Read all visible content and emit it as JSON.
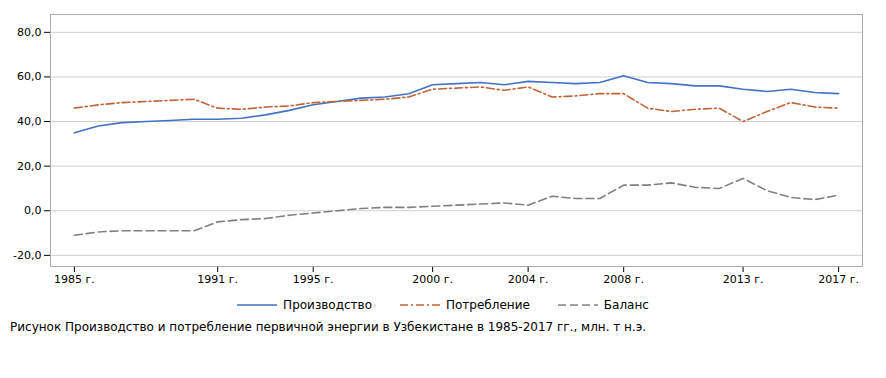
{
  "chart_data": {
    "type": "line",
    "caption": "Рисунок Производство и потребление первичной энергии в Узбекистане в 1985-2017 гг., млн. т н.э.",
    "x": [
      1985,
      1986,
      1987,
      1988,
      1989,
      1990,
      1991,
      1992,
      1993,
      1994,
      1995,
      1996,
      1997,
      1998,
      1999,
      2000,
      2001,
      2002,
      2003,
      2004,
      2005,
      2006,
      2007,
      2008,
      2009,
      2010,
      2011,
      2012,
      2013,
      2014,
      2015,
      2016,
      2017
    ],
    "series": [
      {
        "name": "Производство",
        "color": "#4472c4",
        "line_style": "solid",
        "values": [
          35.0,
          38.0,
          39.5,
          40.0,
          40.5,
          41.0,
          41.0,
          41.5,
          43.0,
          45.0,
          47.5,
          49.0,
          50.5,
          51.0,
          52.5,
          56.5,
          57.0,
          57.5,
          56.5,
          58.0,
          57.5,
          57.0,
          57.5,
          60.5,
          57.5,
          57.0,
          56.0,
          56.0,
          54.5,
          53.5,
          54.5,
          53.0,
          52.5
        ]
      },
      {
        "name": "Потребление",
        "color": "#c0653a",
        "line_style": "dashdot",
        "values": [
          46.0,
          47.5,
          48.5,
          49.0,
          49.5,
          50.0,
          46.0,
          45.5,
          46.5,
          47.0,
          48.5,
          49.0,
          49.5,
          50.0,
          51.0,
          54.5,
          55.0,
          55.5,
          54.0,
          55.5,
          51.0,
          51.5,
          52.5,
          52.5,
          46.0,
          44.5,
          45.5,
          46.0,
          40.0,
          44.5,
          48.5,
          46.5,
          46.0
        ]
      },
      {
        "name": "Баланс",
        "color": "#808080",
        "line_style": "dashed",
        "values": [
          -11.0,
          -9.5,
          -9.0,
          -9.0,
          -9.0,
          -9.0,
          -5.0,
          -4.0,
          -3.5,
          -2.0,
          -1.0,
          0.0,
          1.0,
          1.5,
          1.5,
          2.0,
          2.5,
          3.0,
          3.5,
          2.5,
          6.5,
          5.5,
          5.5,
          11.5,
          11.5,
          12.5,
          10.5,
          10.0,
          14.5,
          9.0,
          6.0,
          5.0,
          7.0
        ]
      }
    ],
    "xlim": [
      1984,
      2018
    ],
    "xticks": [
      {
        "value": 1985,
        "label": "1985 г."
      },
      {
        "value": 1991,
        "label": "1991 г."
      },
      {
        "value": 1995,
        "label": "1995 г."
      },
      {
        "value": 2000,
        "label": "2000 г."
      },
      {
        "value": 2004,
        "label": "2004 г."
      },
      {
        "value": 2008,
        "label": "2008 г."
      },
      {
        "value": 2013,
        "label": "2013 г."
      },
      {
        "value": 2017,
        "label": "2017 г."
      }
    ],
    "ylim": [
      -25,
      88
    ],
    "yticks": [
      {
        "value": -20,
        "label": "-20,0"
      },
      {
        "value": 0,
        "label": "0,0"
      },
      {
        "value": 20,
        "label": "20,0"
      },
      {
        "value": 40,
        "label": "40,0"
      },
      {
        "value": 60,
        "label": "60,0"
      },
      {
        "value": 80,
        "label": "80,0"
      }
    ],
    "grid": "y",
    "legend": "bottom"
  }
}
